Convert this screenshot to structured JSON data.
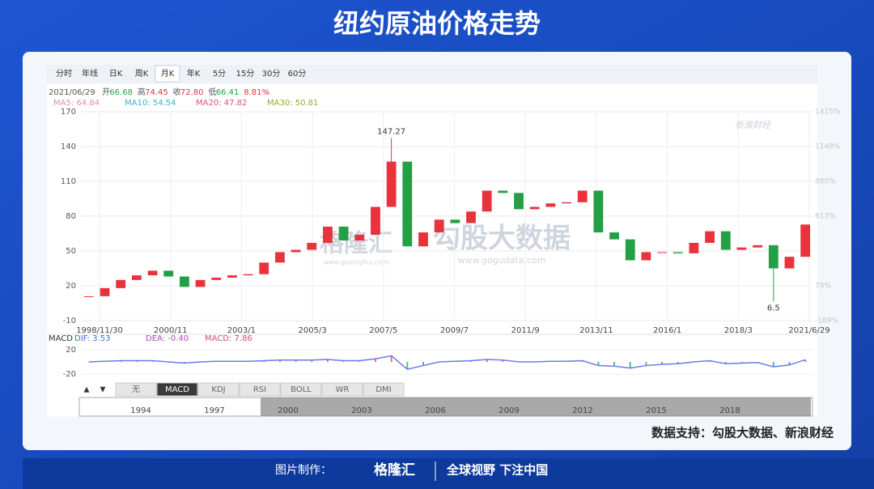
{
  "header": {
    "title": "纽约原油价格走势"
  },
  "toolbar": [
    "分时",
    "年线",
    "日K",
    "周K",
    "月K",
    "年K",
    "5分",
    "15分",
    "30分",
    "60分"
  ],
  "info": [
    "2021/06/29",
    "开",
    "66.68",
    "高",
    "74.45",
    "收",
    "72.80",
    "低",
    "66.41",
    "8.81%"
  ],
  "ma_legend": [
    "MA5: 64.84",
    "MA10: 54.54",
    "MA20: 47.82",
    "MA30: 50.81"
  ],
  "watermarks": [
    "格隆汇",
    "www.gelonghui.com",
    "勾股大数据",
    "www.gogudata.com",
    "新浪财经"
  ],
  "chart_data": {
    "type": "candlestick",
    "x_labels": [
      "1998/11/30",
      "2000/11",
      "2003/1",
      "2005/3",
      "2007/5",
      "2009/7",
      "2011/9",
      "2013/11",
      "2016/1",
      "2018/3",
      "2021/6/29"
    ],
    "closes": [
      11,
      18,
      25,
      29,
      33,
      28,
      19,
      25,
      27,
      29,
      30,
      40,
      49,
      51,
      57,
      71,
      59,
      64,
      88,
      127,
      54,
      66,
      77,
      74,
      84,
      102,
      100,
      86,
      88,
      91,
      92,
      102,
      66,
      60,
      42,
      49,
      49,
      48,
      57,
      67,
      51,
      53,
      55,
      35,
      45,
      72.8
    ],
    "up_color": "#e8323c",
    "down_color": "#23a046",
    "ylim": [
      -10,
      170
    ],
    "yticks": [
      -10,
      20,
      50,
      80,
      110,
      140,
      170
    ],
    "y2lim": [
      -189,
      1415
    ],
    "y2ticks": [
      {
        "value": 1415,
        "label": "1415%"
      },
      {
        "value": 1148,
        "label": "1148%"
      },
      {
        "value": 880,
        "label": "880%"
      },
      {
        "value": 613,
        "label": "613%"
      },
      {
        "value": 78,
        "label": "78%"
      },
      {
        "value": -189,
        "label": "-189%"
      }
    ],
    "annotations": [
      {
        "index": 19,
        "value": 147.27
      },
      {
        "index": 43,
        "value": 6.5
      }
    ],
    "grid": true,
    "macd": {
      "labels": [
        "MACD",
        "DIF: 3.53",
        "DEA: -0.40",
        "MACD: 7.86"
      ],
      "ylim": [
        -25,
        25
      ],
      "yticks": [
        20,
        -20
      ],
      "dif": [
        0,
        1,
        2,
        2,
        2,
        0,
        -2,
        0,
        1,
        1,
        1,
        2,
        3,
        3,
        3,
        4,
        2,
        2,
        5,
        10,
        -12,
        -6,
        0,
        1,
        2,
        4,
        3,
        0,
        0,
        1,
        1,
        2,
        -6,
        -7,
        -10,
        -6,
        -4,
        -3,
        0,
        2,
        -3,
        -2,
        -1,
        -8,
        -5,
        3.53
      ]
    }
  },
  "buttons": [
    "无",
    "MACD",
    "KDJ",
    "RSI",
    "BOLL",
    "WR",
    "DMI"
  ],
  "timeline": [
    "1994",
    "1997",
    "2000",
    "2003",
    "2006",
    "2009",
    "2012",
    "2015",
    "2018"
  ],
  "source": "数据支持：勾股大数据、新浪财经",
  "footer": {
    "made_by": "图片制作：",
    "brand": "格隆汇",
    "slogan": "全球视野 下注中国"
  }
}
